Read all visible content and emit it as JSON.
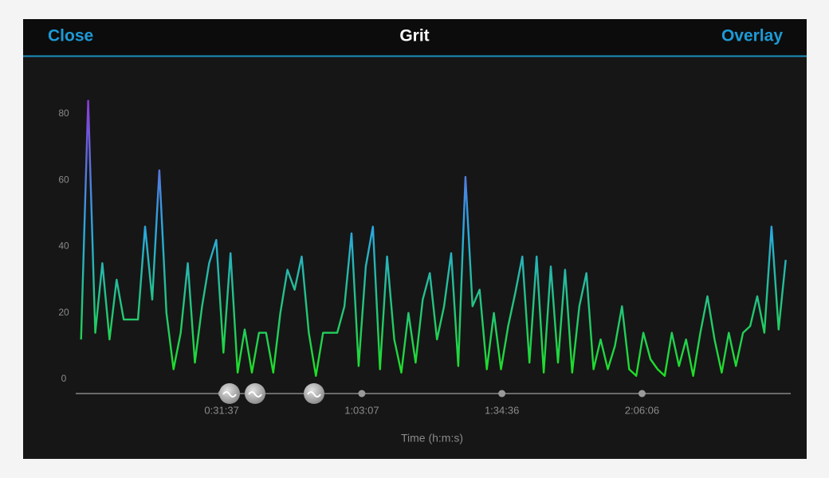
{
  "header": {
    "left_button": "Close",
    "title": "Grit",
    "right_button": "Overlay"
  },
  "chart_data": {
    "type": "line",
    "x_label": "Time (h:m:s)",
    "x": [
      0,
      96,
      192,
      288,
      384,
      480,
      576,
      672,
      768,
      864,
      960,
      1056,
      1152,
      1248,
      1344,
      1440,
      1536,
      1632,
      1728,
      1824,
      1920,
      2016,
      2112,
      2208,
      2304,
      2400,
      2496,
      2592,
      2688,
      2784,
      2880,
      2976,
      3072,
      3168,
      3264,
      3360,
      3456,
      3552,
      3648,
      3744,
      3840,
      3936,
      4032,
      4128,
      4224,
      4320,
      4416,
      4512,
      4608,
      4704,
      4800,
      4896,
      4992,
      5088,
      5184,
      5280,
      5376,
      5472,
      5568,
      5664,
      5760,
      5856,
      5952,
      6048,
      6144,
      6240,
      6336,
      6432,
      6528,
      6624,
      6720,
      6816,
      6912,
      7008,
      7104,
      7200,
      7296,
      7392,
      7488,
      7584,
      7680,
      7776,
      7872,
      7968,
      8064,
      8160,
      8256,
      8352,
      8448,
      8544,
      8640,
      8736,
      8832,
      8928,
      9024,
      9120,
      9216,
      9312,
      9408,
      9504
    ],
    "values": [
      12,
      84,
      14,
      35,
      12,
      30,
      18,
      18,
      18,
      46,
      24,
      63,
      20,
      3,
      14,
      35,
      5,
      22,
      35,
      42,
      8,
      38,
      2,
      15,
      2,
      14,
      14,
      2,
      20,
      33,
      27,
      37,
      14,
      1,
      14,
      14,
      14,
      22,
      44,
      4,
      34,
      46,
      3,
      37,
      12,
      2,
      20,
      5,
      24,
      32,
      12,
      22,
      38,
      4,
      61,
      22,
      27,
      3,
      20,
      3,
      16,
      26,
      37,
      5,
      37,
      2,
      34,
      5,
      33,
      2,
      22,
      32,
      3,
      12,
      3,
      10,
      22,
      3,
      1,
      14,
      6,
      3,
      1,
      14,
      4,
      12,
      1,
      14,
      25,
      12,
      2,
      14,
      4,
      14,
      16,
      25,
      14,
      46,
      15,
      36
    ],
    "colors": [
      "#1ee01e",
      "#2aa8e0",
      "#9a2ad8"
    ],
    "xlim": [
      -50,
      9550
    ],
    "xticks": [
      {
        "value": 1897,
        "label": "0:31:37"
      },
      {
        "value": 3787,
        "label": "1:03:07"
      },
      {
        "value": 5676,
        "label": "1:34:36"
      },
      {
        "value": 7566,
        "label": "2:06:06"
      }
    ],
    "ylim": [
      0,
      90
    ],
    "yticks": [
      0,
      20,
      40,
      60,
      80
    ],
    "grid": false
  }
}
